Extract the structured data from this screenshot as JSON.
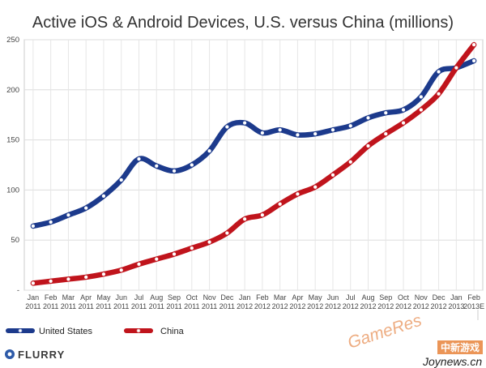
{
  "chart_data": {
    "type": "line",
    "title": "Active iOS & Android Devices, U.S. versus China (millions)",
    "categories": [
      [
        "Jan",
        "2011"
      ],
      [
        "Feb",
        "2011"
      ],
      [
        "Mar",
        "2011"
      ],
      [
        "Apr",
        "2011"
      ],
      [
        "May",
        "2011"
      ],
      [
        "Jun",
        "2011"
      ],
      [
        "Jul",
        "2011"
      ],
      [
        "Aug",
        "2011"
      ],
      [
        "Sep",
        "2011"
      ],
      [
        "Oct",
        "2011"
      ],
      [
        "Nov",
        "2011"
      ],
      [
        "Dec",
        "2011"
      ],
      [
        "Jan",
        "2012"
      ],
      [
        "Feb",
        "2012"
      ],
      [
        "Mar",
        "2012"
      ],
      [
        "Apr",
        "2012"
      ],
      [
        "May",
        "2012"
      ],
      [
        "Jun",
        "2012"
      ],
      [
        "Jul",
        "2012"
      ],
      [
        "Aug",
        "2012"
      ],
      [
        "Sep",
        "2012"
      ],
      [
        "Oct",
        "2012"
      ],
      [
        "Nov",
        "2012"
      ],
      [
        "Dec",
        "2012"
      ],
      [
        "Jan",
        "2013"
      ],
      [
        "Feb",
        "2013E"
      ]
    ],
    "yticks": [
      "-",
      "50",
      "100",
      "150",
      "200",
      "250"
    ],
    "ylim": [
      0,
      250
    ],
    "grid": true,
    "series": [
      {
        "name": "United States",
        "color": "#1c3a8c",
        "values": [
          64,
          68,
          75,
          82,
          94,
          110,
          131,
          124,
          119,
          125,
          139,
          163,
          167,
          157,
          160,
          155,
          156,
          160,
          164,
          172,
          177,
          180,
          193,
          218,
          222,
          229
        ]
      },
      {
        "name": "China",
        "color": "#c0141c",
        "values": [
          7,
          9,
          11,
          13,
          16,
          20,
          26,
          31,
          36,
          42,
          48,
          57,
          71,
          75,
          86,
          96,
          103,
          115,
          128,
          144,
          156,
          167,
          180,
          196,
          222,
          245
        ]
      }
    ],
    "legend_position": "bottom-left"
  },
  "footer": {
    "brand": "FLURRY",
    "watermark_text": "GameRes",
    "watermark_cn": "中新游戏",
    "watermark_site": "Joynews.cn"
  }
}
